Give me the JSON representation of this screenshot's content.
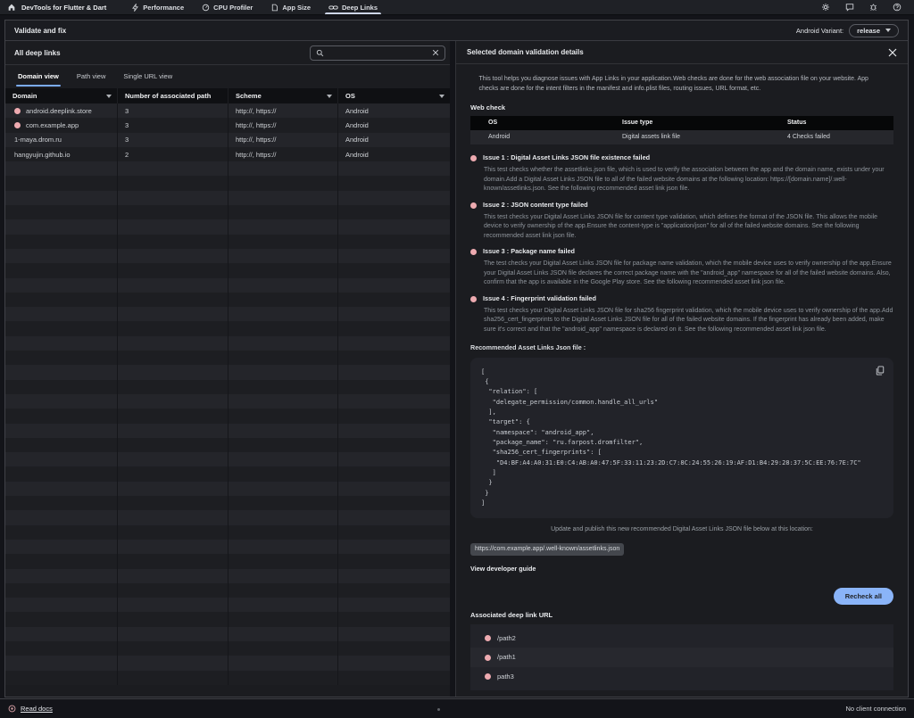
{
  "colors": {
    "accent_blue": "#7cacf8",
    "button_blue": "#8ab4f8",
    "error_pink": "#edaab0",
    "panel_bg": "#1b1c20",
    "code_bg": "#222329"
  },
  "topbar": {
    "title": "DevTools for Flutter & Dart",
    "tabs": [
      {
        "label": "Performance"
      },
      {
        "label": "CPU Profiler"
      },
      {
        "label": "App Size"
      },
      {
        "label": "Deep Links",
        "selected": true
      }
    ]
  },
  "header": {
    "title": "Validate and fix",
    "variant_label": "Android Variant:",
    "variant_value": "release"
  },
  "left": {
    "title": "All deep links",
    "search_value": "",
    "views": [
      {
        "label": "Domain view",
        "selected": true
      },
      {
        "label": "Path view"
      },
      {
        "label": "Single URL view"
      }
    ],
    "table": {
      "columns": [
        "Domain",
        "Number of associated path",
        "Scheme",
        "OS"
      ],
      "rows": [
        {
          "domain": "android.deeplink.store",
          "error": true,
          "count": "3",
          "scheme": "http://, https://",
          "os": "Android"
        },
        {
          "domain": "com.example.app",
          "error": true,
          "count": "3",
          "scheme": "http://, https://",
          "os": "Android"
        },
        {
          "domain": "1-maya.drom.ru",
          "error": false,
          "count": "3",
          "scheme": "http://, https://",
          "os": "Android"
        },
        {
          "domain": "hangyujin.github.io",
          "error": false,
          "count": "2",
          "scheme": "http://, https://",
          "os": "Android"
        }
      ]
    }
  },
  "details": {
    "title": "Selected domain validation details",
    "intro": "This tool helps you diagnose issues with App Links in your application.Web checks are done for the web association file on your website. App checks are done for the intent filters in the manifest and info.plist files, routing issues, URL format, etc.",
    "web_check_label": "Web check",
    "check_table": {
      "columns": [
        "OS",
        "Issue type",
        "Status"
      ],
      "row": {
        "os": "Android",
        "issue_type": "Digital assets link file",
        "status": "4 Checks failed"
      }
    },
    "issues": [
      {
        "title": "Issue 1 : Digital Asset Links JSON file existence failed",
        "body": "This test checks whether the assetlinks.json file, which is used to verify the association between the app and the domain name, exists under your domain.Add a Digital Asset Links JSON file to all of the failed website domains at the following location: https://[domain.name]/.well-known/assetlinks.json. See the following recommended asset link json file."
      },
      {
        "title": "Issue 2 : JSON content type failed",
        "body": "This test checks your Digital Asset Links JSON file for content type validation, which defines the format of the JSON file. This allows the mobile device to verify ownership of the app.Ensure the content-type is \"application/json\" for all of the failed website domains. See the following recommended asset link json file."
      },
      {
        "title": "Issue 3 : Package name failed",
        "body": "The test checks your Digital Asset Links JSON file for package name validation, which the mobile device uses to verify ownership of the app.Ensure your Digital Asset Links JSON file declares the correct package name with the \"android_app\" namespace for all of the failed website domains. Also, confirm that the app is available in the Google Play store. See the following recommended asset link json file."
      },
      {
        "title": "Issue 4 : Fingerprint validation failed",
        "body": "This test checks your Digital Asset Links JSON file for sha256 fingerprint validation, which the mobile device uses to verify ownership of the app.Add sha256_cert_fingerprints to the Digital Asset Links JSON file for all of the failed website domains. If the fingerprint has already been added, make sure it's correct and that the \"android_app\" namespace is declared on it. See the following recommended asset link json file."
      }
    ],
    "recommended_label": "Recommended Asset Links Json file :",
    "json_code": "[\n {\n  \"relation\": [\n   \"delegate_permission/common.handle_all_urls\"\n  ],\n  \"target\": {\n   \"namespace\": \"android_app\",\n   \"package_name\": \"ru.farpost.dromfilter\",\n   \"sha256_cert_fingerprints\": [\n    \"D4:BF:A4:A0:31:E0:C4:AB:A0:47:5F:33:11:23:2D:C7:8C:24:55:26:19:AF:D1:B4:29:28:37:5C:EE:76:7E:7C\"\n   ]\n  }\n }\n]",
    "update_line": "Update and publish this new recommended Digital Asset Links JSON file below at this location:",
    "location_chip": "https://com.example.app/.well-known/assetlinks.json",
    "guide_link": "View developer guide",
    "recheck_button": "Recheck all",
    "associated_label": "Associated deep link URL",
    "paths": [
      "/path2",
      "/path1",
      "path3"
    ]
  },
  "footer": {
    "docs_link": "Read docs",
    "status": "No client connection"
  }
}
